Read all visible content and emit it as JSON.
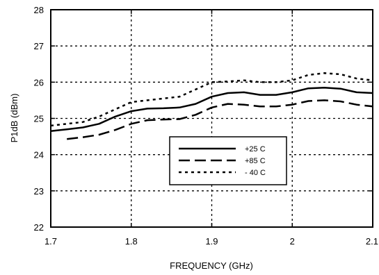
{
  "chart_data": {
    "type": "line",
    "title": "",
    "xlabel": "FREQUENCY (GHz)",
    "ylabel": "P1dB (dBm)",
    "xlim": [
      1.7,
      2.1
    ],
    "ylim": [
      22,
      28
    ],
    "xticks": [
      1.7,
      1.8,
      1.9,
      2.0,
      2.1
    ],
    "xtick_labels": [
      "1.7",
      "1.8",
      "1.9",
      "2",
      "2.1"
    ],
    "yticks": [
      22,
      23,
      24,
      25,
      26,
      27,
      28
    ],
    "ytick_labels": [
      "22",
      "23",
      "24",
      "25",
      "26",
      "27",
      "28"
    ],
    "grid": true,
    "legend_position": "center-right",
    "series": [
      {
        "name": "+25 C",
        "style": "solid",
        "x": [
          1.7,
          1.72,
          1.74,
          1.76,
          1.78,
          1.8,
          1.82,
          1.84,
          1.86,
          1.88,
          1.9,
          1.92,
          1.94,
          1.96,
          1.98,
          2.0,
          2.02,
          2.04,
          2.06,
          2.08,
          2.1
        ],
        "y": [
          24.65,
          24.7,
          24.75,
          24.85,
          25.05,
          25.2,
          25.27,
          25.28,
          25.3,
          25.4,
          25.6,
          25.7,
          25.72,
          25.65,
          25.65,
          25.72,
          25.83,
          25.85,
          25.82,
          25.72,
          25.7
        ]
      },
      {
        "name": "+85 C",
        "style": "dashed",
        "x": [
          1.72,
          1.74,
          1.76,
          1.78,
          1.8,
          1.82,
          1.84,
          1.86,
          1.88,
          1.9,
          1.92,
          1.94,
          1.96,
          1.98,
          2.0,
          2.02,
          2.04,
          2.06,
          2.08,
          2.1
        ],
        "y": [
          24.43,
          24.48,
          24.55,
          24.68,
          24.85,
          24.95,
          24.97,
          24.98,
          25.1,
          25.3,
          25.4,
          25.38,
          25.33,
          25.33,
          25.38,
          25.48,
          25.5,
          25.47,
          25.38,
          25.33
        ]
      },
      {
        "name": "- 40 C",
        "style": "dotted",
        "x": [
          1.7,
          1.72,
          1.74,
          1.76,
          1.78,
          1.8,
          1.82,
          1.84,
          1.86,
          1.88,
          1.9,
          1.92,
          1.94,
          1.96,
          1.98,
          2.0,
          2.02,
          2.04,
          2.06,
          2.08,
          2.1
        ],
        "y": [
          24.8,
          24.85,
          24.9,
          25.05,
          25.25,
          25.45,
          25.5,
          25.55,
          25.6,
          25.8,
          26.0,
          26.02,
          26.05,
          26.0,
          26.0,
          26.05,
          26.2,
          26.25,
          26.22,
          26.1,
          26.05
        ]
      }
    ]
  }
}
